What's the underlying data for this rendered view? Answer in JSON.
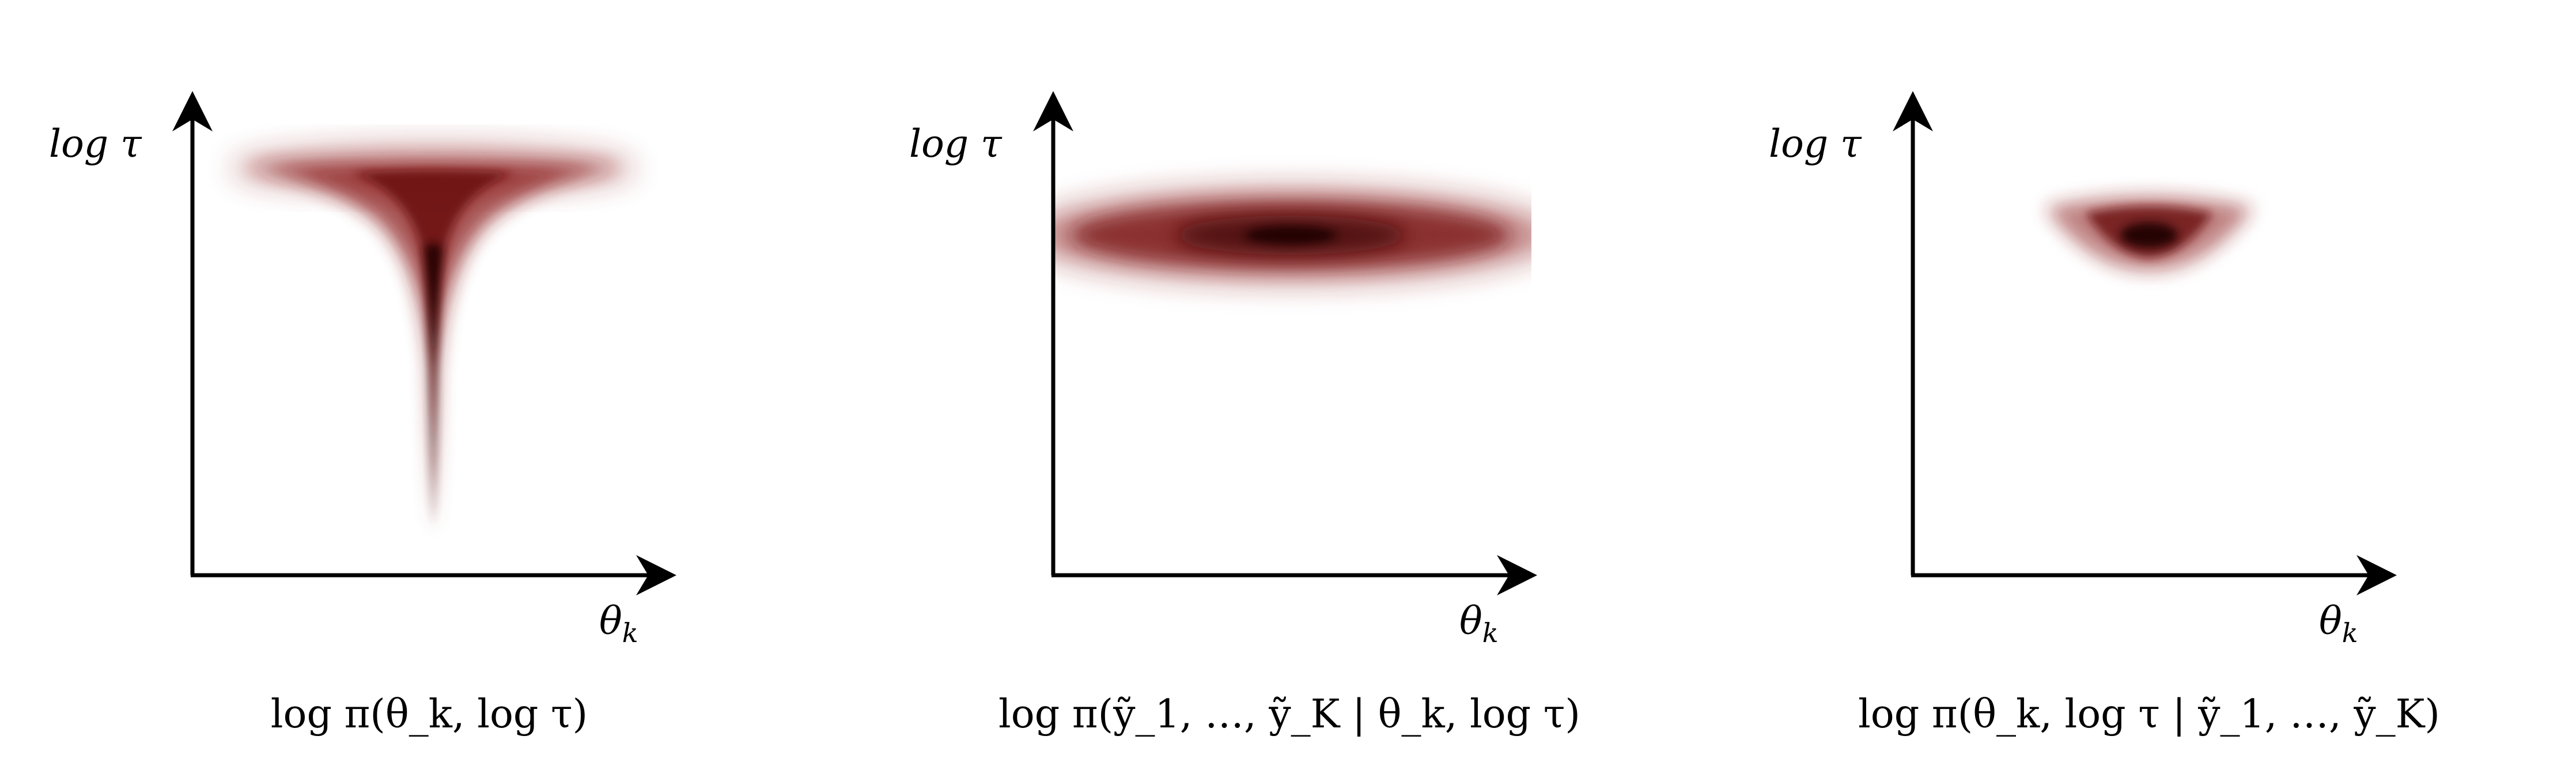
{
  "figure": {
    "colors": {
      "density": "#8b1a1a",
      "density_core": "#1a0505",
      "axis": "#000000"
    },
    "panels": [
      {
        "y_axis": {
          "label": "log τ"
        },
        "x_axis": {
          "label": "θ_k",
          "base": "θ",
          "sub": "k"
        },
        "caption": "log π(θ_k, log τ)",
        "density_shape": "funnel"
      },
      {
        "y_axis": {
          "label": "log τ"
        },
        "x_axis": {
          "label": "θ_k",
          "base": "θ",
          "sub": "k"
        },
        "caption": "log π(ỹ_1, …, ỹ_K | θ_k, log τ)",
        "density_shape": "wide-ellipse"
      },
      {
        "y_axis": {
          "label": "log τ"
        },
        "x_axis": {
          "label": "θ_k",
          "base": "θ",
          "sub": "k"
        },
        "caption": "log π(θ_k, log τ | ỹ_1, …, ỹ_K)",
        "density_shape": "small-blob"
      }
    ]
  }
}
